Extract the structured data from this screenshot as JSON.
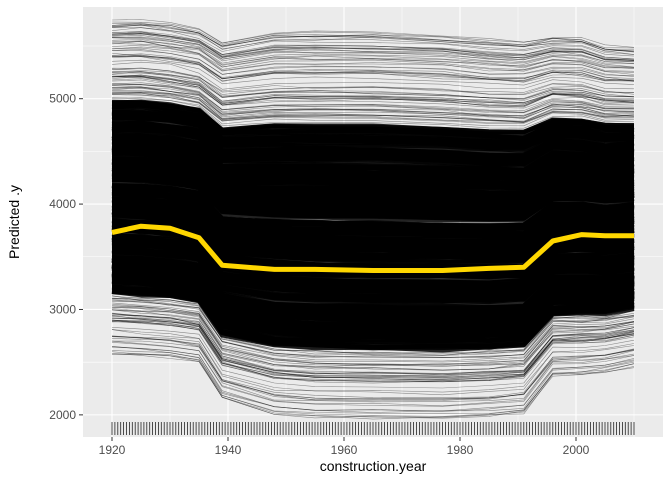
{
  "chart_data": {
    "type": "line",
    "subtype": "individual-conditional-expectation",
    "xlabel": "construction.year",
    "ylabel": "Predicted .y",
    "xlim": [
      1915,
      2015
    ],
    "ylim": [
      1790,
      5870
    ],
    "x_ticks": [
      1920,
      1940,
      1960,
      1980,
      2000
    ],
    "y_ticks": [
      2000,
      3000,
      4000,
      5000
    ],
    "x_tick_labels": [
      "1920",
      "1940",
      "1960",
      "1980",
      "2000"
    ],
    "y_tick_labels": [
      "2000",
      "3000",
      "4000",
      "5000"
    ],
    "grid": true,
    "rug": {
      "position": "bottom",
      "x_range": [
        1920,
        2010
      ]
    },
    "colors": {
      "panel_background": "#EBEBEB",
      "grid": "#FFFFFF",
      "ice_lines": "#000000",
      "mean_line": "#FFD700"
    },
    "series": [
      {
        "role": "average",
        "x": [
          1920,
          1925,
          1930,
          1935,
          1939,
          1948,
          1955,
          1965,
          1977,
          1985,
          1991,
          1996,
          2001,
          2005,
          2010
        ],
        "values": [
          3730,
          3790,
          3770,
          3680,
          3420,
          3380,
          3380,
          3370,
          3370,
          3390,
          3400,
          3650,
          3710,
          3700,
          3700
        ]
      },
      {
        "role": "individual-envelope-upper",
        "x": [
          1920,
          1925,
          1930,
          1935,
          1939,
          1948,
          1955,
          1965,
          1977,
          1985,
          1991,
          1996,
          2001,
          2005,
          2010
        ],
        "values": [
          5750,
          5760,
          5730,
          5680,
          5550,
          5640,
          5650,
          5650,
          5620,
          5580,
          5560,
          5600,
          5590,
          5520,
          5500
        ]
      },
      {
        "role": "individual-envelope-lower",
        "x": [
          1920,
          1925,
          1930,
          1935,
          1939,
          1948,
          1955,
          1965,
          1977,
          1985,
          1991,
          1996,
          2001,
          2005,
          2010
        ],
        "values": [
          2580,
          2560,
          2540,
          2500,
          2150,
          2000,
          1970,
          1960,
          1960,
          1980,
          2010,
          2370,
          2380,
          2400,
          2460
        ]
      }
    ]
  }
}
